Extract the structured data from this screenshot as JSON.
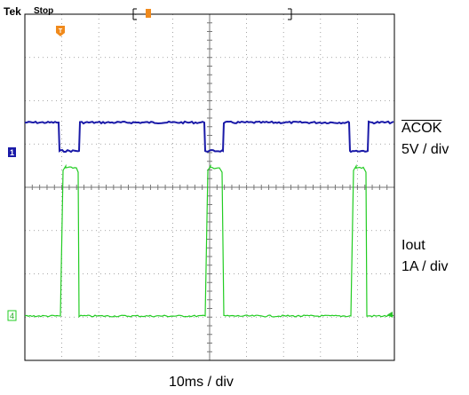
{
  "header": {
    "brand": "Tek",
    "acquisition_state": "Stop",
    "trigger_marker_label": "T"
  },
  "channels": [
    {
      "id": "1",
      "signal_name": "ACOK",
      "scale": "5V / div",
      "color": "#1a1aa8"
    },
    {
      "id": "4",
      "signal_name": "Iout",
      "scale": "1A / div",
      "color": "#22cc22"
    }
  ],
  "timebase": "10ms / div",
  "colors": {
    "grid": "#8c8c8c",
    "marker": "#f08a1c",
    "frame": "#000000"
  },
  "icons": [
    "trigger-position-marker-icon",
    "trigger-level-arrow-icon",
    "channel-1-ground-marker-icon",
    "channel-4-ground-marker-icon"
  ]
}
